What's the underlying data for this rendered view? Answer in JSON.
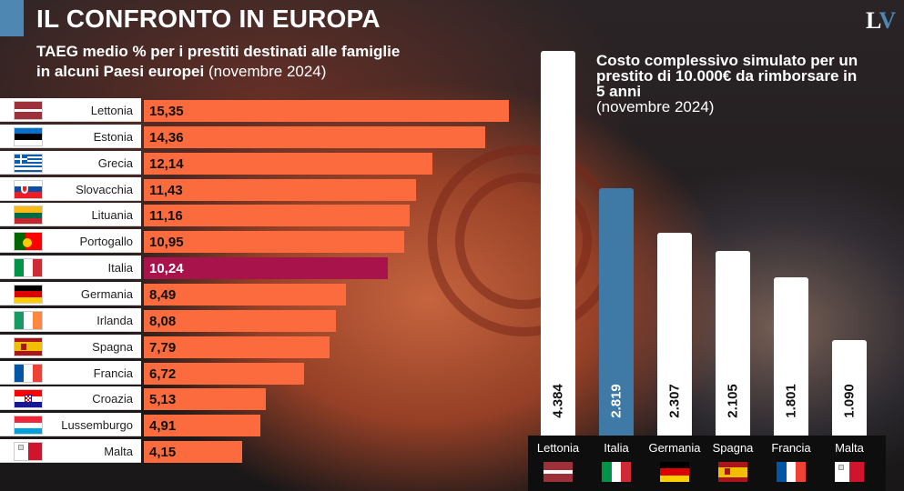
{
  "header": {
    "title": "IL CONFRONTO IN EUROPA",
    "logo_l": "L",
    "logo_v": "V",
    "subtitle_bold_1": "TAEG medio % per i prestiti destinati alle famiglie",
    "subtitle_bold_2": "in alcuni Paesi europei",
    "subtitle_normal": "(novembre 2024)"
  },
  "colors": {
    "bar": "#fb6b3d",
    "highlight_bar": "#a8134c",
    "column": "#ffffff",
    "highlight_column": "#3f7aa7",
    "accent": "#4f87b3"
  },
  "right": {
    "title": "Costo complessivo simulato per un prestito di 10.000€ da rimborsare in 5 anni",
    "subtitle": "(novembre 2024)"
  },
  "chart_data": [
    {
      "type": "bar",
      "orientation": "horizontal",
      "title": "TAEG medio % per i prestiti destinati alle famiglie in alcuni Paesi europei (novembre 2024)",
      "categories": [
        "Lettonia",
        "Estonia",
        "Grecia",
        "Slovacchia",
        "Lituania",
        "Portogallo",
        "Italia",
        "Germania",
        "Irlanda",
        "Spagna",
        "Francia",
        "Croazia",
        "Lussemburgo",
        "Malta"
      ],
      "values": [
        15.35,
        14.36,
        12.14,
        11.43,
        11.16,
        10.95,
        10.24,
        8.49,
        8.08,
        7.79,
        6.72,
        5.13,
        4.91,
        4.15
      ],
      "value_labels": [
        "15,35",
        "14,36",
        "12,14",
        "11,43",
        "11,16",
        "10,95",
        "10,24",
        "8,49",
        "8,08",
        "7,79",
        "6,72",
        "5,13",
        "4,91",
        "4,15"
      ],
      "flags": [
        "latvia-flag",
        "estonia-flag",
        "greece-flag",
        "slovakia-flag",
        "lithuania-flag",
        "portugal-flag",
        "italy-flag",
        "germany-flag",
        "ireland-flag",
        "spain-flag",
        "france-flag",
        "croatia-flag",
        "luxembourg-flag",
        "malta-flag"
      ],
      "highlight": "Italia",
      "xlim": [
        0,
        15.35
      ],
      "grid": false,
      "legend": "none"
    },
    {
      "type": "bar",
      "orientation": "vertical",
      "title": "Costo complessivo simulato per un prestito di 10.000€ da rimborsare in 5 anni (novembre 2024)",
      "categories": [
        "Lettonia",
        "Italia",
        "Germania",
        "Spagna",
        "Francia",
        "Malta"
      ],
      "values": [
        4384,
        2819,
        2307,
        2105,
        1801,
        1090
      ],
      "value_labels": [
        "4.384",
        "2.819",
        "2.307",
        "2.105",
        "1.801",
        "1.090"
      ],
      "flags": [
        "latvia-flag",
        "italy-flag",
        "germany-flag",
        "spain-flag",
        "france-flag",
        "malta-flag"
      ],
      "highlight": "Italia",
      "ylim": [
        0,
        4384
      ],
      "grid": false,
      "legend": "none"
    }
  ]
}
